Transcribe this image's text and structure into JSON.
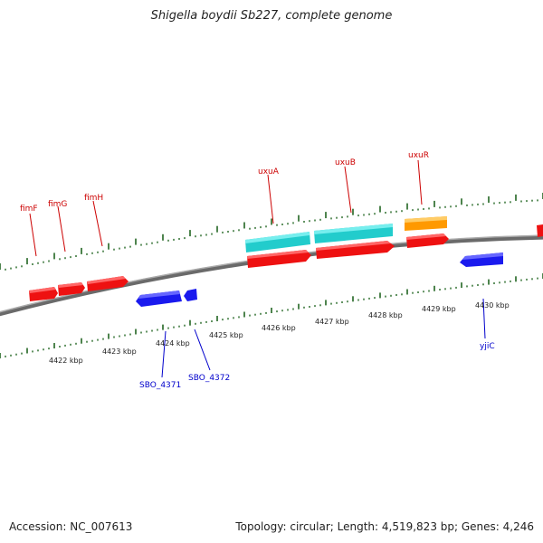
{
  "title": "Shigella boydii Sb227, complete genome",
  "accession": "Accession: NC_007613",
  "summary": "Topology: circular; Length: 4,519,823 bp; Genes: 4,246",
  "colors": {
    "forward_gene": "#ee1111",
    "reverse_gene": "#1a1aee",
    "cyan_feature": "#22cccc",
    "orange_feature": "#ff9900",
    "tick": "#226622",
    "backbone": "#888888",
    "fwd_label": "#cc0000",
    "rev_label": "#0000cc"
  },
  "kbp_labels": [
    {
      "id": "4422",
      "text": "4422 kbp"
    },
    {
      "id": "4423",
      "text": "4423 kbp"
    },
    {
      "id": "4424",
      "text": "4424 kbp"
    },
    {
      "id": "4425",
      "text": "4425 kbp"
    },
    {
      "id": "4426",
      "text": "4426 kbp"
    },
    {
      "id": "4427",
      "text": "4427 kbp"
    },
    {
      "id": "4428",
      "text": "4428 kbp"
    },
    {
      "id": "4429",
      "text": "4429 kbp"
    },
    {
      "id": "4430",
      "text": "4430 kbp"
    }
  ],
  "forward_genes": [
    {
      "id": "fimF",
      "label": "fimF"
    },
    {
      "id": "fimG",
      "label": "fimG"
    },
    {
      "id": "fimH",
      "label": "fimH"
    },
    {
      "id": "uxuA",
      "label": "uxuA"
    },
    {
      "id": "uxuB",
      "label": "uxuB"
    },
    {
      "id": "uxuR",
      "label": "uxuR"
    }
  ],
  "reverse_genes": [
    {
      "id": "SBO_4371",
      "label": "SBO_4371"
    },
    {
      "id": "SBO_4372",
      "label": "SBO_4372"
    },
    {
      "id": "yjiC",
      "label": "yjiC"
    }
  ]
}
